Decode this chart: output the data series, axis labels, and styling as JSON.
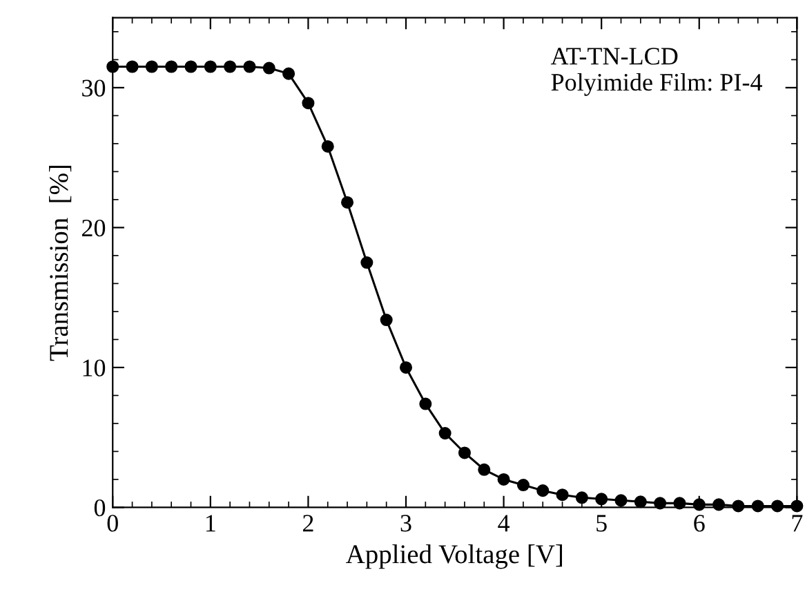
{
  "chart_data": {
    "type": "line",
    "xlabel": "Applied Voltage [V]",
    "ylabel": "Transmission  [%]",
    "annotations": [
      "AT-TN-LCD\nPolyimide Film: PI-4"
    ],
    "x": [
      0,
      0.2,
      0.4,
      0.6,
      0.8,
      1.0,
      1.2,
      1.4,
      1.6,
      1.8,
      2.0,
      2.2,
      2.4,
      2.6,
      2.8,
      3.0,
      3.2,
      3.4,
      3.6,
      3.8,
      4.0,
      4.2,
      4.4,
      4.6,
      4.8,
      5.0,
      5.2,
      5.4,
      5.6,
      5.8,
      6.0,
      6.2,
      6.4,
      6.6,
      6.8,
      7.0
    ],
    "series": [
      {
        "color": "#000000",
        "values": [
          31.5,
          31.5,
          31.5,
          31.5,
          31.5,
          31.5,
          31.5,
          31.5,
          31.4,
          31.0,
          28.9,
          25.8,
          21.8,
          17.5,
          13.4,
          10.0,
          7.4,
          5.3,
          3.9,
          2.7,
          2.0,
          1.6,
          1.2,
          0.9,
          0.7,
          0.6,
          0.5,
          0.4,
          0.3,
          0.3,
          0.2,
          0.2,
          0.1,
          0.1,
          0.1,
          0.1
        ]
      }
    ],
    "xlim": [
      0,
      7
    ],
    "xticks": [
      0,
      1,
      2,
      3,
      4,
      5,
      6,
      7
    ],
    "ylim": [
      0,
      35
    ],
    "yticks": [
      0,
      10,
      20,
      30
    ],
    "marker": "circle",
    "line_style": "solid",
    "grid": false,
    "legend": false
  }
}
